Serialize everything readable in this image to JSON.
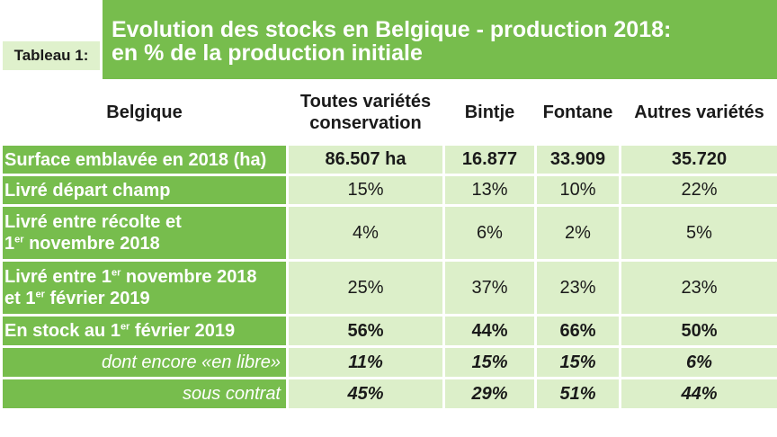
{
  "tag": "Tableau 1:",
  "title_line1": "Evolution des stocks en Belgique - production 2018:",
  "title_line2": "en % de la production initiale",
  "headers": [
    "Belgique",
    "Toutes variétés conservation",
    "Bintje",
    "Fontane",
    "Autres variétés"
  ],
  "rows": [
    {
      "label": "Surface emblavée en 2018 (ha)",
      "values": [
        "86.507 ha",
        "16.877",
        "33.909",
        "35.720"
      ]
    },
    {
      "label": "Livré départ champ",
      "values": [
        "15%",
        "13%",
        "10%",
        "22%"
      ]
    },
    {
      "label_a": "Livré entre récolte et",
      "label_sup_num": "1",
      "label_sup": "er",
      "label_b": "novembre 2018",
      "values": [
        "4%",
        "6%",
        "2%",
        "5%"
      ]
    },
    {
      "label_a": "Livré entre 1",
      "label_sup": "er",
      "label_b": "novembre 2018",
      "label_c": "et 1",
      "label_sup2": "er",
      "label_d": "février 2019",
      "values": [
        "25%",
        "37%",
        "23%",
        "23%"
      ]
    },
    {
      "label_a": "En stock au 1",
      "label_sup": "er",
      "label_b": "février 2019",
      "values": [
        "56%",
        "44%",
        "66%",
        "50%"
      ]
    },
    {
      "label": "dont encore «en libre»",
      "values": [
        "11%",
        "15%",
        "15%",
        "6%"
      ]
    },
    {
      "label": "sous contrat",
      "values": [
        "45%",
        "29%",
        "51%",
        "44%"
      ]
    }
  ]
}
